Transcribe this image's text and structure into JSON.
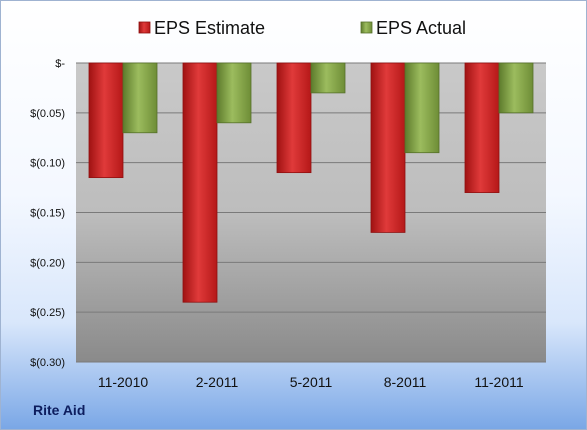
{
  "chart_data": {
    "type": "bar",
    "categories": [
      "11-2010",
      "2-2011",
      "5-2011",
      "8-2011",
      "11-2011"
    ],
    "series": [
      {
        "name": "EPS Estimate",
        "values": [
          -0.115,
          -0.24,
          -0.11,
          -0.17,
          -0.13
        ],
        "color": "#cc1f1f"
      },
      {
        "name": "EPS Actual",
        "values": [
          -0.07,
          -0.06,
          -0.03,
          -0.09,
          -0.05
        ],
        "color": "#7e9f42"
      }
    ],
    "ylim": [
      -0.3,
      0
    ],
    "yticks": [
      0,
      -0.05,
      -0.1,
      -0.15,
      -0.2,
      -0.25,
      -0.3
    ],
    "ytick_labels": [
      "$-",
      "$(0.05)",
      "$(0.10)",
      "$(0.15)",
      "$(0.20)",
      "$(0.25)",
      "$(0.30)"
    ],
    "grid": true,
    "legend_position": "top"
  },
  "company": "Rite Aid"
}
